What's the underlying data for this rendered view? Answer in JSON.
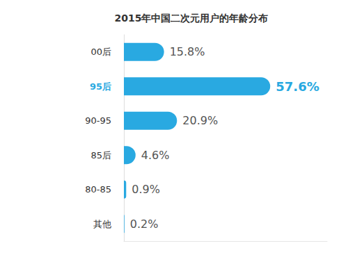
{
  "chart_data": {
    "type": "bar",
    "orientation": "horizontal",
    "title": "2015年中国二次元用户的年龄分布",
    "categories": [
      "00后",
      "95后",
      "90-95",
      "85后",
      "80-85",
      "其他"
    ],
    "values": [
      15.8,
      57.6,
      20.9,
      4.6,
      0.9,
      0.2
    ],
    "value_labels": [
      "15.8%",
      "57.6%",
      "20.9%",
      "4.6%",
      "0.9%",
      "0.2%"
    ],
    "color": "#29a9e1",
    "xlim": [
      0,
      80
    ],
    "data_labels": true,
    "tick_labels": "y",
    "grid": false
  }
}
